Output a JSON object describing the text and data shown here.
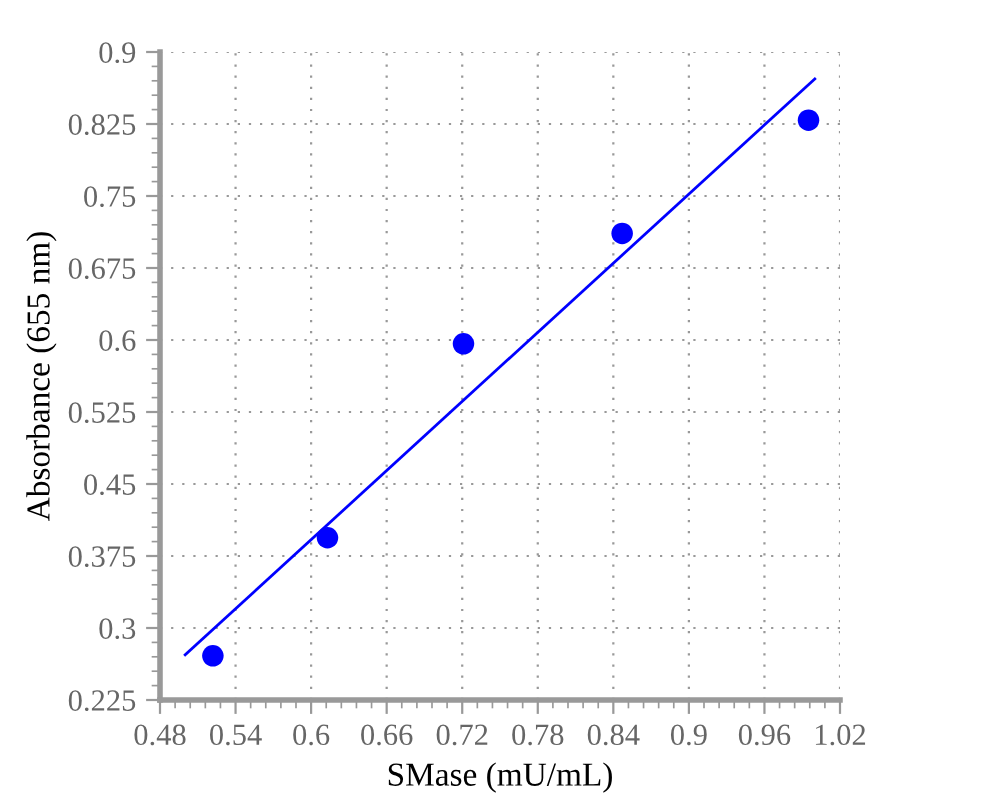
{
  "chart_data": {
    "type": "scatter",
    "xlabel": "SMase (mU/mL)",
    "ylabel": "Absorbance (655 nm)",
    "series": [
      {
        "color": "#0000ff",
        "x": [
          0.522,
          0.613,
          0.721,
          0.847,
          0.995
        ],
        "values": [
          0.271,
          0.394,
          0.596,
          0.711,
          0.829
        ]
      },
      {
        "type": "line",
        "color": "#0000ff",
        "x": [
          0.5,
          1.0
        ],
        "values": [
          0.272,
          0.872
        ]
      }
    ],
    "xlim": [
      0.48,
      1.02
    ],
    "xticks": [
      0.48,
      0.54,
      0.6,
      0.66,
      0.72,
      0.78,
      0.84,
      0.9,
      0.96,
      1.02
    ],
    "ylim": [
      0.225,
      0.9
    ],
    "yticks": [
      0.225,
      0.3,
      0.375,
      0.45,
      0.525,
      0.6,
      0.675,
      0.75,
      0.825,
      0.9
    ],
    "grid": true,
    "legend": false
  }
}
